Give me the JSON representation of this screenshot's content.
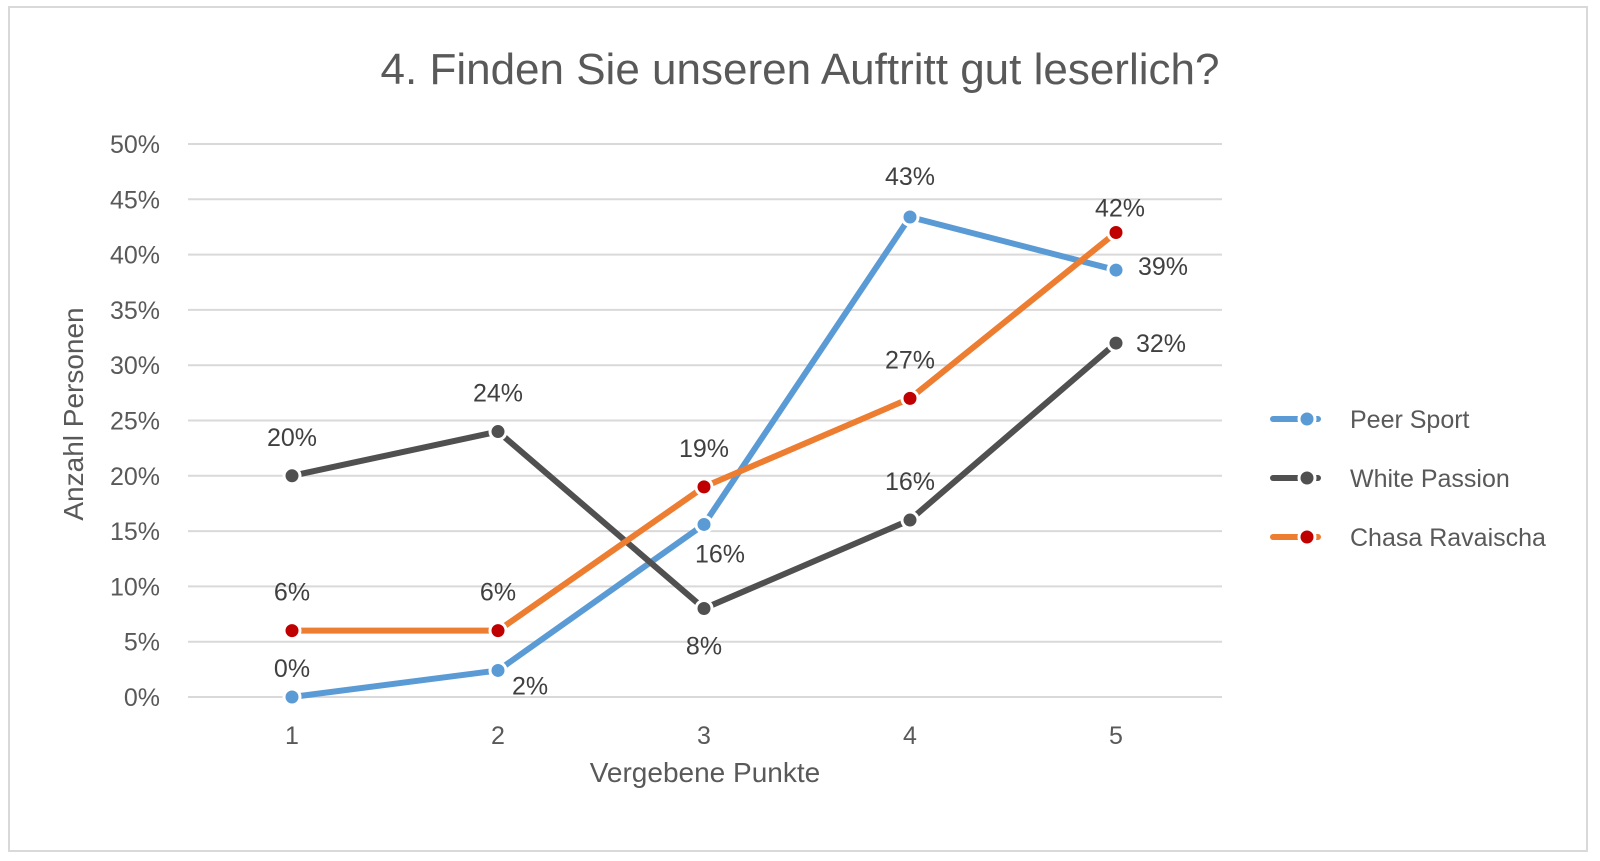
{
  "chart_data": {
    "type": "line",
    "title": "4. Finden Sie unseren Auftritt gut leserlich?",
    "xlabel": "Vergebene Punkte",
    "ylabel": "Anzahl Personen",
    "categories": [
      "1",
      "2",
      "3",
      "4",
      "5"
    ],
    "ylim": [
      0,
      50
    ],
    "yticks": [
      "0%",
      "5%",
      "10%",
      "15%",
      "20%",
      "25%",
      "30%",
      "35%",
      "40%",
      "45%",
      "50%"
    ],
    "grid": true,
    "legend_position": "right",
    "series": [
      {
        "name": "Peer Sport",
        "color": "#5B9BD5",
        "marker_color": "#5B9BD5",
        "values": [
          0,
          2.4,
          15.6,
          43.4,
          38.6
        ],
        "labels": [
          "0%",
          "2%",
          "16%",
          "43%",
          "39%"
        ]
      },
      {
        "name": "White Passion",
        "color": "#505050",
        "marker_color": "#505050",
        "values": [
          20,
          24,
          8,
          16,
          32
        ],
        "labels": [
          "20%",
          "24%",
          "8%",
          "16%",
          "32%"
        ]
      },
      {
        "name": "Chasa Ravaischa",
        "color": "#ED7D31",
        "marker_color": "#C00000",
        "values": [
          6,
          6,
          19,
          27,
          42
        ],
        "labels": [
          "6%",
          "6%",
          "19%",
          "27%",
          "42%"
        ]
      }
    ]
  }
}
